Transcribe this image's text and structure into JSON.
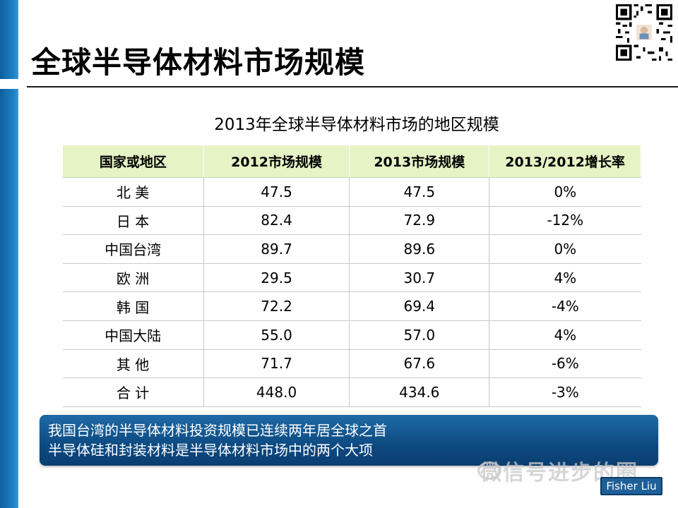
{
  "slide": {
    "title": "全球半导体材料市场规模",
    "subtitle": "2013年全球半导体材料市场的地区规模"
  },
  "table": {
    "headers": [
      "国家或地区",
      "2012市场规模",
      "2013市场规模",
      "2013/2012增长率"
    ],
    "rows": [
      [
        "北 美",
        "47.5",
        "47.5",
        "0%"
      ],
      [
        "日 本",
        "82.4",
        "72.9",
        "-12%"
      ],
      [
        "中国台湾",
        "89.7",
        "89.6",
        "0%"
      ],
      [
        "欧 洲",
        "29.5",
        "30.7",
        "4%"
      ],
      [
        "韩 国",
        "72.2",
        "69.4",
        "-4%"
      ],
      [
        "中国大陆",
        "55.0",
        "57.0",
        "4%"
      ],
      [
        "其 他",
        "71.7",
        "67.6",
        "-6%"
      ],
      [
        "合 计",
        "448.0",
        "434.6",
        "-3%"
      ]
    ]
  },
  "note": {
    "line1": "我国台湾的半导体材料投资规模已连续两年居全球之首",
    "line2": "半导体硅和封装材料是半导体材料市场中的两个大项"
  },
  "watermark": {
    "text": "微信号进步的圈"
  },
  "author_badge": {
    "text": "Fisher Liu"
  },
  "colors": {
    "left_bar": "#1c7fc4",
    "header_fill": "#e6f3c5",
    "note_box": "#0d4a82"
  }
}
